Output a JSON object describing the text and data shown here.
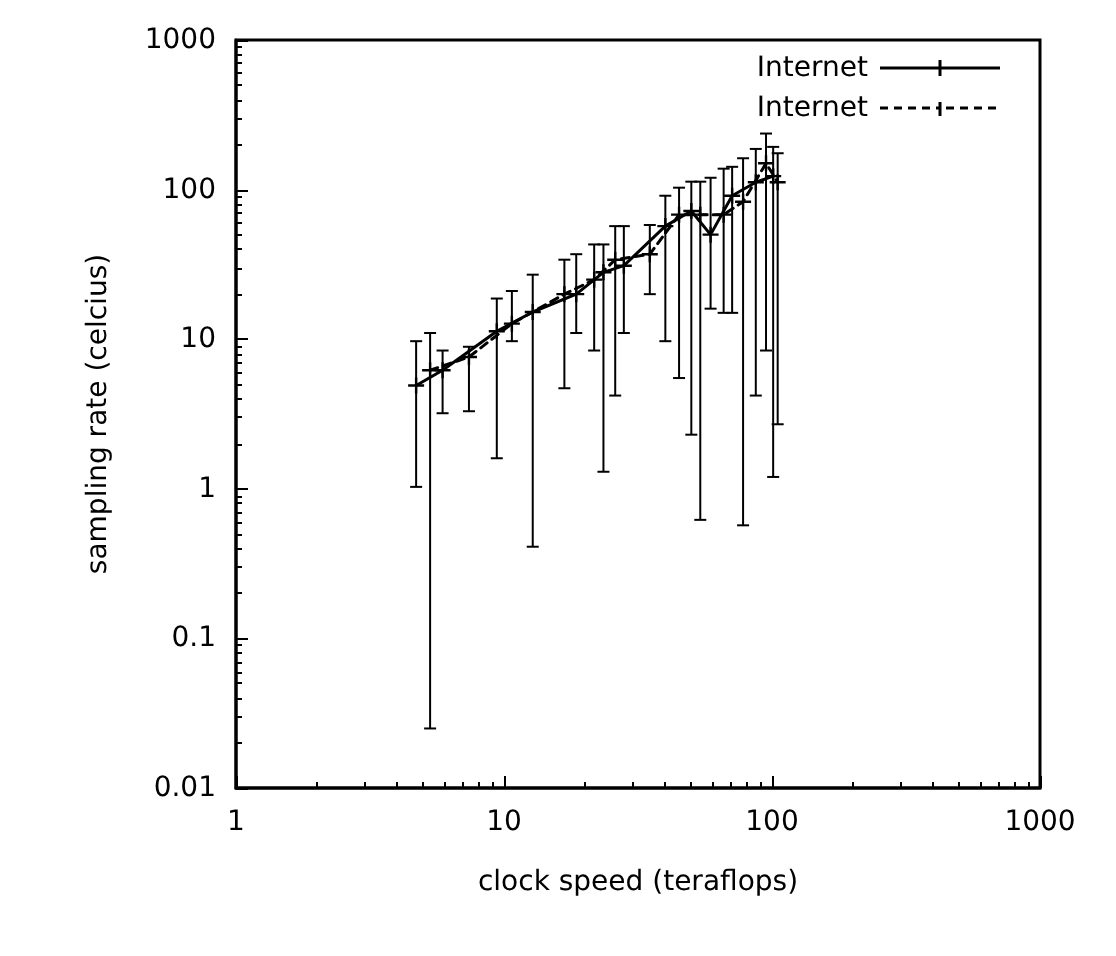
{
  "chart_data": {
    "type": "line",
    "xlabel": "clock speed (teraflops)",
    "ylabel": "sampling rate (celcius)",
    "log": "xy",
    "xlim": [
      1,
      1000
    ],
    "ylim": [
      0.01,
      1000
    ],
    "xticks": [
      1,
      10,
      100,
      1000
    ],
    "yticks": [
      0.01,
      0.1,
      1,
      10,
      100,
      1000
    ],
    "grid": false,
    "legend": "top right",
    "marker": "cross",
    "series": [
      {
        "name": "Internet",
        "color": "#000000",
        "line_style": "solid",
        "x": [
          4.7,
          5.9,
          9.4,
          12.8,
          18.6,
          23.5,
          28,
          40,
          50,
          59,
          71,
          87,
          101
        ],
        "values": [
          4.9,
          6.2,
          11.3,
          15.2,
          20,
          28,
          31,
          57,
          72,
          50,
          91,
          112,
          123
        ],
        "errors": [
          [
            1.03,
            9.7
          ],
          [
            3.2,
            8.4
          ],
          [
            1.6,
            18.7
          ],
          [
            0.41,
            27
          ],
          [
            11,
            37
          ],
          [
            1.3,
            43
          ],
          [
            11,
            57
          ],
          [
            9.7,
            91
          ],
          [
            2.3,
            113
          ],
          [
            16,
            120
          ],
          [
            15,
            142
          ],
          [
            4.2,
            187
          ],
          [
            1.2,
            193
          ]
        ]
      },
      {
        "name": "Internet",
        "color": "#000000",
        "line_style": "dashed",
        "x": [
          5.3,
          7.4,
          10.7,
          16.8,
          21.7,
          26,
          35,
          45,
          54,
          66,
          78,
          95,
          105
        ],
        "values": [
          6.2,
          7.6,
          12.7,
          20,
          25,
          34,
          37,
          68,
          68,
          68,
          83,
          150,
          112
        ],
        "errors": [
          [
            0.025,
            11
          ],
          [
            3.3,
            8.9
          ],
          [
            9.7,
            21
          ],
          [
            4.7,
            34
          ],
          [
            8.4,
            43
          ],
          [
            4.2,
            57
          ],
          [
            20,
            58
          ],
          [
            5.5,
            103
          ],
          [
            0.62,
            113
          ],
          [
            15,
            138
          ],
          [
            0.57,
            162
          ],
          [
            8.4,
            237
          ],
          [
            2.7,
            175
          ]
        ]
      }
    ]
  }
}
